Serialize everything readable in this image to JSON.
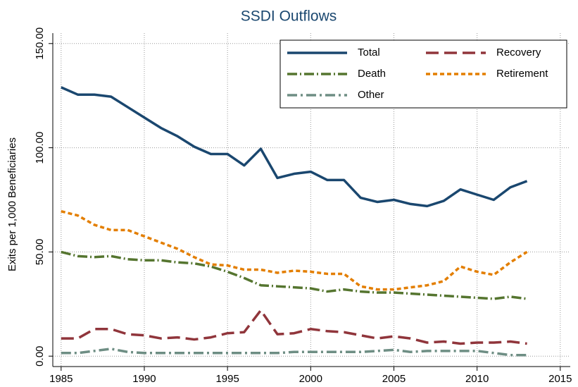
{
  "chart_data": {
    "type": "line",
    "title": "SSDI Outflows",
    "y_label": "Exits per 1,000 Beneficiaries",
    "x": [
      1985,
      1986,
      1987,
      1988,
      1989,
      1990,
      1991,
      1992,
      1993,
      1994,
      1995,
      1996,
      1997,
      1998,
      1999,
      2000,
      2001,
      2002,
      2003,
      2004,
      2005,
      2006,
      2007,
      2008,
      2009,
      2010,
      2011,
      2012,
      2013
    ],
    "series": [
      {
        "name": "Total",
        "color": "#1a476f",
        "dash": "solid",
        "values": [
          129,
          125.5,
          125.5,
          124.5,
          119.5,
          114.5,
          109.5,
          105.5,
          100.5,
          97,
          97,
          91.5,
          99.5,
          85.5,
          87.5,
          88.5,
          84.5,
          84.5,
          76,
          74,
          75,
          73,
          72,
          74.5,
          80,
          77.5,
          75,
          81,
          84
        ]
      },
      {
        "name": "Recovery",
        "color": "#90353b",
        "dash": "long-dash",
        "values": [
          8.5,
          8.5,
          13,
          13,
          10.5,
          10,
          8.5,
          9,
          8,
          9,
          11,
          11.5,
          22,
          10.5,
          11,
          13,
          12,
          11.5,
          10,
          8.5,
          9.5,
          8.5,
          6.5,
          7,
          6,
          6.5,
          6.5,
          7,
          6
        ]
      },
      {
        "name": "Death",
        "color": "#55752f",
        "dash": "dash-dot",
        "values": [
          50,
          48,
          47.5,
          48,
          46.5,
          46,
          46,
          45,
          44.5,
          43,
          40.5,
          37.5,
          34,
          33.5,
          33,
          32.5,
          31,
          32,
          31,
          30.5,
          30.5,
          30,
          29.5,
          29,
          28.5,
          28,
          27.5,
          28.5,
          27.5
        ]
      },
      {
        "name": "Retirement",
        "color": "#e37e00",
        "dash": "short-dash",
        "values": [
          69.5,
          67.5,
          63,
          60.5,
          60.5,
          57.5,
          54.5,
          51.5,
          47.5,
          44,
          43.5,
          41.5,
          41.5,
          40,
          41,
          40.5,
          39.5,
          39.5,
          33.5,
          32,
          32,
          33,
          34,
          36,
          43,
          40.5,
          39,
          45,
          50
        ]
      },
      {
        "name": "Other",
        "color": "#6e8e84",
        "dash": "dash-dot-long",
        "values": [
          1.5,
          1.5,
          2.5,
          3.5,
          2,
          1.5,
          1.5,
          1.5,
          1.5,
          1.5,
          1.5,
          1.5,
          1.5,
          1.5,
          2,
          2,
          2,
          2,
          2,
          2.5,
          3,
          2,
          2.5,
          2.5,
          2.5,
          2.5,
          1.5,
          0.5,
          0.5
        ]
      }
    ],
    "xlim": [
      1984.5,
      2015.6
    ],
    "ylim": [
      -5,
      155
    ],
    "xticks": [
      1985,
      1990,
      1995,
      2000,
      2005,
      2010,
      2015
    ],
    "yticks": [
      {
        "value": 0,
        "label": "0.00"
      },
      {
        "value": 50,
        "label": "50.00"
      },
      {
        "value": 100,
        "label": "100.00"
      },
      {
        "value": 150,
        "label": "150.00"
      }
    ],
    "grid": true,
    "legend_position": "upper-right"
  }
}
